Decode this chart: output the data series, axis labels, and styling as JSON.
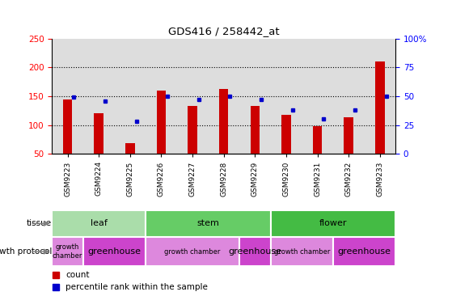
{
  "title": "GDS416 / 258442_at",
  "samples": [
    "GSM9223",
    "GSM9224",
    "GSM9225",
    "GSM9226",
    "GSM9227",
    "GSM9228",
    "GSM9229",
    "GSM9230",
    "GSM9231",
    "GSM9232",
    "GSM9233"
  ],
  "counts": [
    145,
    121,
    68,
    160,
    133,
    163,
    133,
    118,
    98,
    114,
    210
  ],
  "percentiles": [
    49,
    46,
    28,
    50,
    47,
    50,
    47,
    38,
    30,
    38,
    50
  ],
  "left_ylim": [
    50,
    250
  ],
  "left_yticks": [
    50,
    100,
    150,
    200,
    250
  ],
  "right_ylim": [
    0,
    100
  ],
  "right_yticks": [
    0,
    25,
    50,
    75,
    100
  ],
  "right_yticklabels": [
    "0",
    "25",
    "50",
    "75",
    "100%"
  ],
  "grid_values": [
    100,
    150,
    200
  ],
  "bar_color": "#cc0000",
  "percentile_color": "#0000cc",
  "tissue_groups": [
    {
      "label": "leaf",
      "start": 0,
      "end": 2,
      "color": "#aaddaa"
    },
    {
      "label": "stem",
      "start": 3,
      "end": 6,
      "color": "#66cc66"
    },
    {
      "label": "flower",
      "start": 7,
      "end": 10,
      "color": "#44bb44"
    }
  ],
  "protocol_groups": [
    {
      "label": "growth\nchamber",
      "start": 0,
      "end": 0,
      "color": "#dd88dd",
      "fontsize": 6
    },
    {
      "label": "greenhouse",
      "start": 1,
      "end": 2,
      "color": "#cc44cc",
      "fontsize": 8
    },
    {
      "label": "growth chamber",
      "start": 3,
      "end": 5,
      "color": "#dd88dd",
      "fontsize": 6
    },
    {
      "label": "greenhouse",
      "start": 6,
      "end": 6,
      "color": "#cc44cc",
      "fontsize": 8
    },
    {
      "label": "growth chamber",
      "start": 7,
      "end": 8,
      "color": "#dd88dd",
      "fontsize": 6
    },
    {
      "label": "greenhouse",
      "start": 9,
      "end": 10,
      "color": "#cc44cc",
      "fontsize": 8
    }
  ],
  "background_color": "#ffffff",
  "axis_bg_color": "#dddddd",
  "bar_width": 0.3
}
